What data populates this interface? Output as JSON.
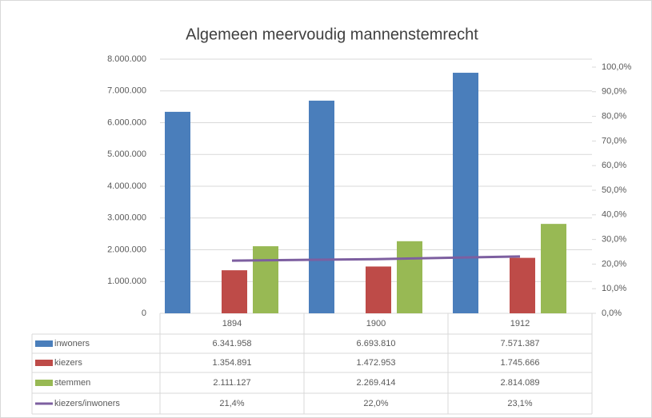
{
  "chart_data": {
    "type": "bar",
    "title": "Algemeen meervoudig mannenstemrecht",
    "categories": [
      "1894",
      "1900",
      "1912"
    ],
    "series": [
      {
        "name": "inwoners",
        "color": "#4a7ebb",
        "values": [
          6341958,
          6693810,
          7571387
        ],
        "value_labels": [
          "6.341.958",
          "6.693.810",
          "7.571.387"
        ]
      },
      {
        "name": "kiezers",
        "color": "#be4b48",
        "values": [
          1354891,
          1472953,
          1745666
        ],
        "value_labels": [
          "1.354.891",
          "1.472.953",
          "1.745.666"
        ]
      },
      {
        "name": "stemmen",
        "color": "#98b954",
        "values": [
          2111127,
          2269414,
          2814089
        ],
        "value_labels": [
          "2.111.127",
          "2.269.414",
          "2.814.089"
        ]
      },
      {
        "name": "kiezers/inwoners",
        "color": "#7d5fa0",
        "type": "line",
        "axis": "y2",
        "values": [
          21.4,
          22.0,
          23.1
        ],
        "value_labels": [
          "21,4%",
          "22,0%",
          "23,1%"
        ]
      }
    ],
    "ylim": [
      0,
      8000000
    ],
    "yticks": [
      0,
      {
        "value": 1000000,
        "label": "1.000.000"
      },
      {
        "value": 2000000,
        "label": "2.000.000"
      },
      {
        "value": 3000000,
        "label": "3.000.000"
      },
      {
        "value": 4000000,
        "label": "4.000.000"
      },
      {
        "value": 5000000,
        "label": "5.000.000"
      },
      {
        "value": 6000000,
        "label": "6.000.000"
      },
      {
        "value": 7000000,
        "label": "7.000.000"
      },
      {
        "value": 8000000,
        "label": "8.000.000"
      }
    ],
    "y2lim": [
      0,
      100
    ],
    "y2ticks": [
      {
        "value": 0,
        "label": "0,0%"
      },
      {
        "value": 10,
        "label": "10,0%"
      },
      {
        "value": 20,
        "label": "20,0%"
      },
      {
        "value": 30,
        "label": "30,0%"
      },
      {
        "value": 40,
        "label": "40,0%"
      },
      {
        "value": 50,
        "label": "50,0%"
      },
      {
        "value": 60,
        "label": "60,0%"
      },
      {
        "value": 70,
        "label": "70,0%"
      },
      {
        "value": 80,
        "label": "80,0%"
      },
      {
        "value": 90,
        "label": "90,0%"
      },
      {
        "value": 100,
        "label": "100,0%"
      }
    ],
    "grid": true
  }
}
